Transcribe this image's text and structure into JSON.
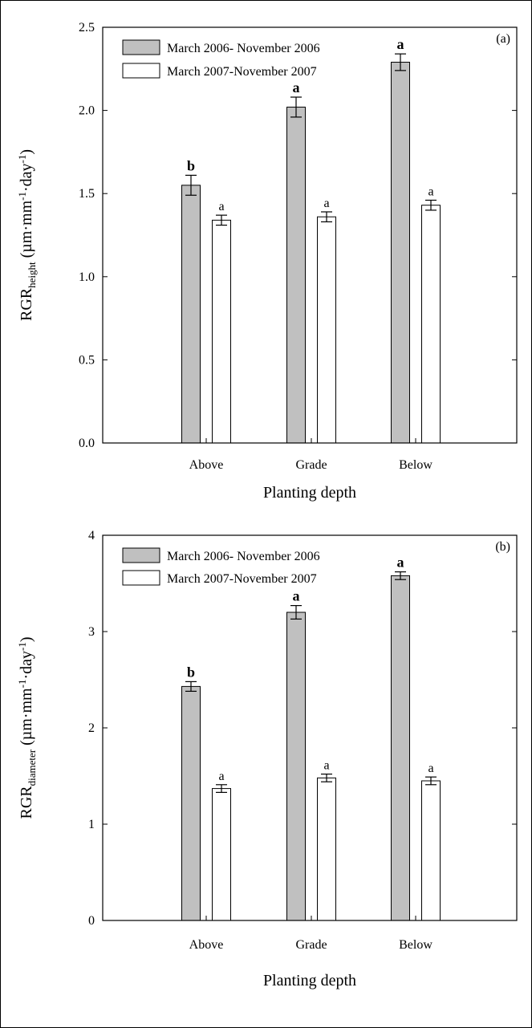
{
  "chart_data": [
    {
      "type": "bar",
      "panel_label": "(a)",
      "categories": [
        "Above",
        "Grade",
        "Below"
      ],
      "xlabel": "Planting depth",
      "ylabel": {
        "main": "RGR",
        "subscript": "height",
        "units": " (µm·mm",
        "exp1": "-1",
        "mid": "·day",
        "exp2": "-1",
        "end": ")"
      },
      "ylim": [
        0,
        2.5
      ],
      "yticks": [
        0.0,
        0.5,
        1.0,
        1.5,
        2.0,
        2.5
      ],
      "ytick_labels": [
        "0.0",
        "0.5",
        "1.0",
        "1.5",
        "2.0",
        "2.5"
      ],
      "legend_position": "top-left",
      "series": [
        {
          "name": "March 2006- November 2006",
          "color": "#c0c0c0",
          "values": [
            1.55,
            2.02,
            2.29
          ],
          "errors": [
            0.06,
            0.06,
            0.05
          ],
          "letters": [
            "b",
            "a",
            "a"
          ],
          "letter_style": "bold"
        },
        {
          "name": "March 2007-November 2007",
          "color": "#ffffff",
          "values": [
            1.34,
            1.36,
            1.43
          ],
          "errors": [
            0.03,
            0.03,
            0.03
          ],
          "letters": [
            "a",
            "a",
            "a"
          ],
          "letter_style": "regular"
        }
      ]
    },
    {
      "type": "bar",
      "panel_label": "(b)",
      "categories": [
        "Above",
        "Grade",
        "Below"
      ],
      "xlabel": "Planting depth",
      "ylabel": {
        "main": "RGR",
        "subscript": "diameter",
        "units": " (µm·mm",
        "exp1": "-1",
        "mid": "·day",
        "exp2": "-1",
        "end": ")"
      },
      "ylim": [
        0,
        4
      ],
      "yticks": [
        0,
        1,
        2,
        3,
        4
      ],
      "ytick_labels": [
        "0",
        "1",
        "2",
        "3",
        "4"
      ],
      "legend_position": "top-left",
      "series": [
        {
          "name": "March 2006- November 2006",
          "color": "#c0c0c0",
          "values": [
            2.43,
            3.2,
            3.58
          ],
          "errors": [
            0.05,
            0.07,
            0.04
          ],
          "letters": [
            "b",
            "a",
            "a"
          ],
          "letter_style": "bold"
        },
        {
          "name": "March 2007-November 2007",
          "color": "#ffffff",
          "values": [
            1.37,
            1.48,
            1.45
          ],
          "errors": [
            0.04,
            0.04,
            0.04
          ],
          "letters": [
            "a",
            "a",
            "a"
          ],
          "letter_style": "regular"
        }
      ]
    }
  ]
}
